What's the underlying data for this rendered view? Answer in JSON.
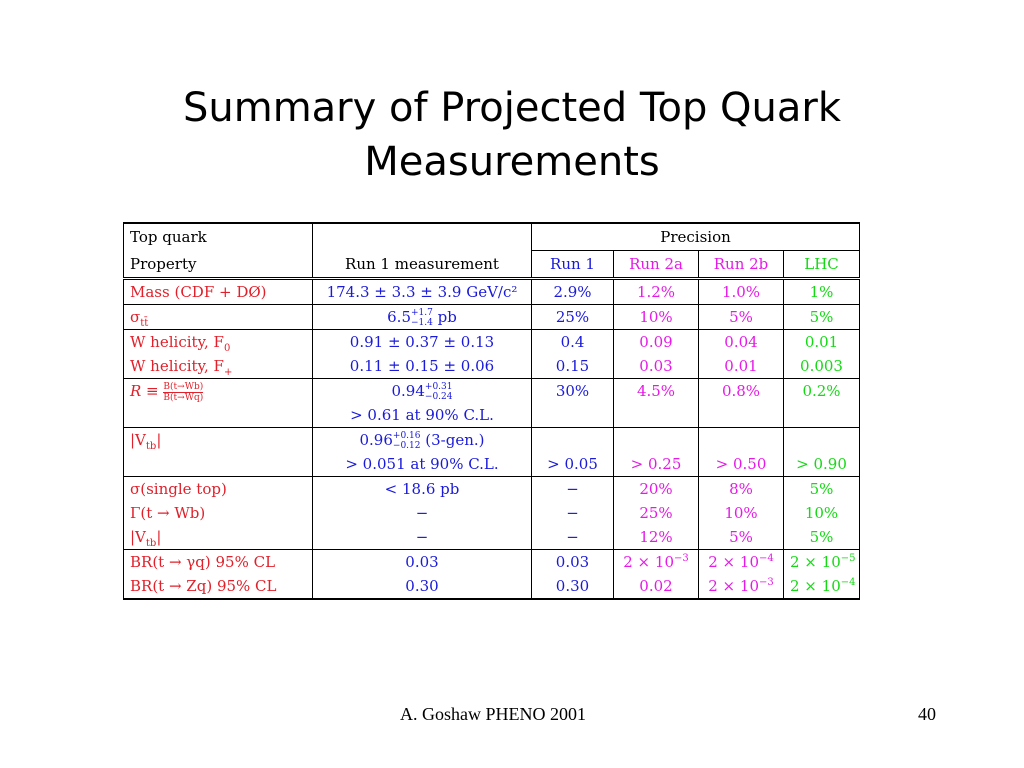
{
  "slide": {
    "title_line1": "Summary of Projected Top Quark",
    "title_line2": "Measurements",
    "footer_text": "A. Goshaw PHENO 2001",
    "page_number": "40"
  },
  "table": {
    "header": {
      "property_line1": "Top quark",
      "property_line2": "Property",
      "run1_measurement": "Run 1 measurement",
      "precision": "Precision",
      "run1": "Run 1",
      "run2a": "Run 2a",
      "run2b": "Run 2b",
      "lhc": "LHC"
    },
    "rows": {
      "mass": {
        "property": "Mass (CDF + DØ)",
        "measurement": "174.3 ± 3.3 ± 3.9 GeV/c²",
        "run1": "2.9%",
        "run2a": "1.2%",
        "run2b": "1.0%",
        "lhc": "1%"
      },
      "sigma": {
        "property": "σ",
        "property_sub": "tt̄",
        "measurement": "6.5",
        "meas_sup": "+1.7",
        "meas_sub": "−1.4",
        "meas_unit": " pb",
        "run1": "25%",
        "run2a": "10%",
        "run2b": "5%",
        "lhc": "5%"
      },
      "wh0": {
        "property": "W helicity, F",
        "property_sub": "0",
        "measurement": "0.91 ± 0.37 ± 0.13",
        "run1": "0.4",
        "run2a": "0.09",
        "run2b": "0.04",
        "lhc": "0.01"
      },
      "whp": {
        "property": "W helicity, F",
        "property_sub": "+",
        "measurement": "0.11 ± 0.15 ± 0.06",
        "run1": "0.15",
        "run2a": "0.03",
        "run2b": "0.01",
        "lhc": "0.003"
      },
      "r1": {
        "property": "R ≡ ",
        "frac_num": "B(t→Wb)",
        "frac_den": "B(t→Wq)",
        "measurement": "0.94",
        "meas_sup": "+0.31",
        "meas_sub": "−0.24",
        "run1": "30%",
        "run2a": "4.5%",
        "run2b": "0.8%",
        "lhc": "0.2%"
      },
      "r2": {
        "measurement": "> 0.61 at 90% C.L."
      },
      "vtb1": {
        "property": "|V",
        "property_sub": "tb",
        "property_end": "|",
        "measurement": "0.96",
        "meas_sup": "+0.16",
        "meas_sub": "−0.12",
        "meas_unit": " (3-gen.)"
      },
      "vtb2": {
        "measurement": "> 0.051 at 90% C.L.",
        "run1": "> 0.05",
        "run2a": "> 0.25",
        "run2b": "> 0.50",
        "lhc": "> 0.90"
      },
      "single": {
        "property": "σ(single top)",
        "measurement": "< 18.6 pb",
        "run1": "−",
        "run2a": "20%",
        "run2b": "8%",
        "lhc": "5%"
      },
      "gamma": {
        "property": "Γ(t → Wb)",
        "measurement": "−",
        "run1": "−",
        "run2a": "25%",
        "run2b": "10%",
        "lhc": "10%"
      },
      "vtb3": {
        "property": "|V",
        "property_sub": "tb",
        "property_end": "|",
        "measurement": "−",
        "run1": "−",
        "run2a": "12%",
        "run2b": "5%",
        "lhc": "5%"
      },
      "brg": {
        "property": "BR(t → γq) 95% CL",
        "measurement": "0.03",
        "run1": "0.03",
        "run2a": "2 × 10",
        "run2a_exp": "−3",
        "run2b": "2 × 10",
        "run2b_exp": "−4",
        "lhc": "2 × 10",
        "lhc_exp": "−5"
      },
      "brz": {
        "property": "BR(t → Zq) 95% CL",
        "measurement": "0.30",
        "run1": "0.30",
        "run2a": "0.02",
        "run2b": "2 × 10",
        "run2b_exp": "−3",
        "lhc": "2 × 10",
        "lhc_exp": "−4"
      }
    }
  },
  "colors": {
    "property": "#e0202a",
    "measurement": "#1a1ad8",
    "run1": "#1a1ad8",
    "run2a": "#e61ae6",
    "run2b": "#e61ae6",
    "lhc": "#14d914"
  }
}
